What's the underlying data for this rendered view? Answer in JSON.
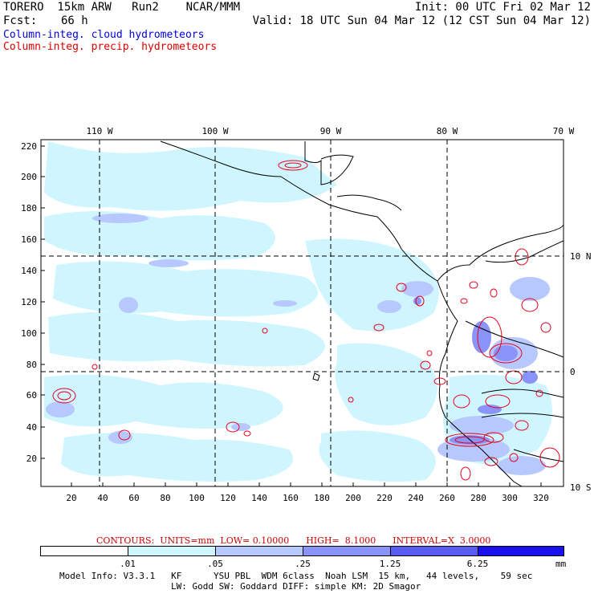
{
  "header": {
    "model": "TORERO  15km ARW   Run2    NCAR/MMM",
    "init": "Init: 00 UTC Fri 02 Mar 12",
    "fcst_label": "Fcst:",
    "fcst_value": "66 h",
    "valid": "Valid: 18 UTC Sun 04 Mar 12 (12 CST Sun 04 Mar 12)",
    "field_cloud": "Column-integ. cloud hydrometeors",
    "field_precip": "Column-integ. precip. hydrometeors"
  },
  "colors": {
    "cloud_text": "#0000dd",
    "precip_text": "#dd0000",
    "contour": "#e8001c",
    "land_lines": "#000000",
    "shade_levels": [
      "#ffffff",
      "#cff6ff",
      "#b7c8ff",
      "#8a94f8",
      "#5a5cf0",
      "#1a12ee"
    ]
  },
  "map": {
    "top_lon_labels": [
      "110 W",
      "100 W",
      "90 W",
      "80 W",
      "70 W"
    ],
    "right_lat_labels": [
      "10 N",
      "0",
      "10 S"
    ],
    "y_ticks": [
      "220",
      "200",
      "180",
      "160",
      "140",
      "120",
      "100",
      "80",
      "60",
      "40",
      "20"
    ],
    "x_ticks": [
      "20",
      "40",
      "60",
      "80",
      "100",
      "120",
      "140",
      "160",
      "180",
      "200",
      "220",
      "240",
      "260",
      "280",
      "300",
      "320"
    ]
  },
  "legend": {
    "contours_text": "CONTOURS:  UNITS=mm  LOW= 0.10000      HIGH=  8.1000      INTERVAL=X  3.0000",
    "labels": [
      ".01",
      ".05",
      ".25",
      "1.25",
      "6.25"
    ],
    "unit": "mm"
  },
  "footer": {
    "line1": "Model Info: V3.3.1   KF      YSU PBL  WDM 6class  Noah LSM  15 km,   44 levels,    59 sec",
    "line2": "LW: Godd SW: Goddard DIFF: simple KM: 2D Smagor"
  }
}
